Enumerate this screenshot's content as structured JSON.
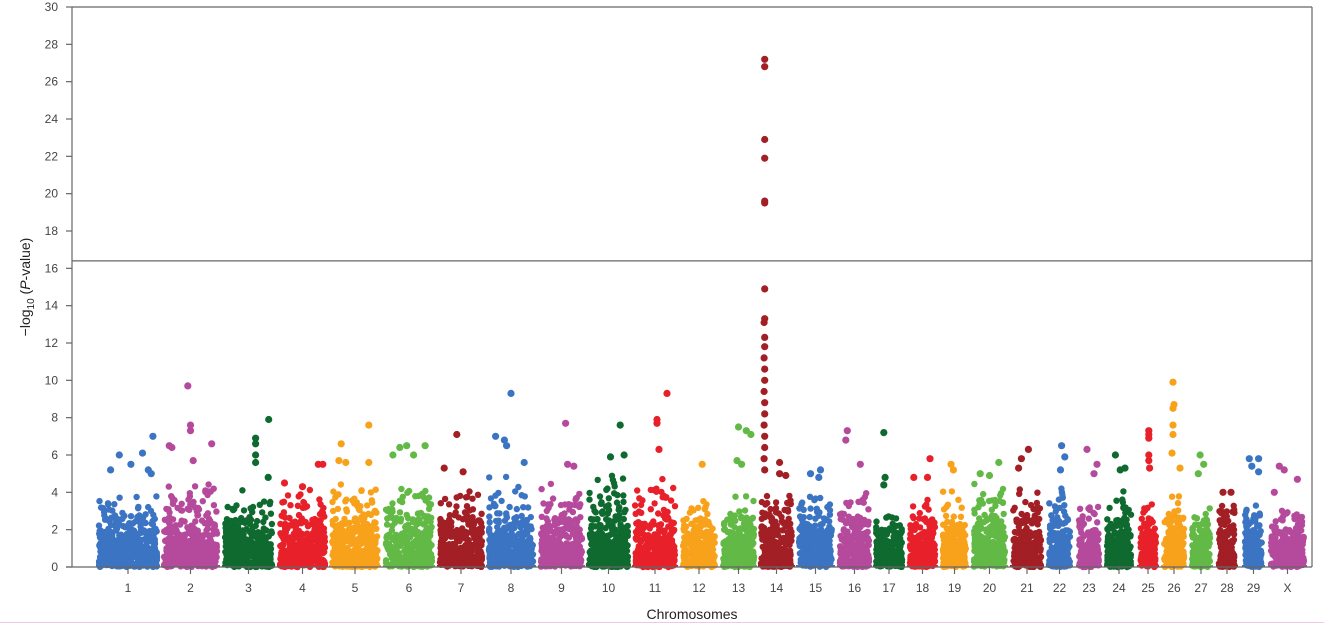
{
  "chart_data": {
    "type": "scatter",
    "subtype": "manhattan",
    "title": "",
    "xlabel": "Chromosomes",
    "ylabel": {
      "prefix": "−log",
      "sub": "10",
      "open": " (",
      "italic": "P",
      "suffix": "-value)"
    },
    "ylim": [
      0,
      30
    ],
    "yticks": [
      0,
      2,
      4,
      6,
      8,
      10,
      12,
      14,
      16,
      18,
      20,
      22,
      24,
      26,
      28,
      30
    ],
    "reference_line": 16.4,
    "grid": false,
    "legend": "none",
    "palette": [
      "#3b74c2",
      "#b54a9d",
      "#0f6a2f",
      "#e8202a",
      "#f8a21c",
      "#62b946",
      "#a21f25"
    ],
    "chromosomes": [
      {
        "label": "1",
        "bulk_max": 4.4,
        "top": [
          [
            0.2,
            5.2
          ],
          [
            0.35,
            6.0
          ],
          [
            0.55,
            5.5
          ],
          [
            0.75,
            6.1
          ],
          [
            0.85,
            5.2
          ],
          [
            0.93,
            7.0
          ],
          [
            0.9,
            5.0
          ]
        ]
      },
      {
        "label": "2",
        "bulk_max": 5.0,
        "top": [
          [
            0.45,
            9.7
          ],
          [
            0.5,
            7.6
          ],
          [
            0.5,
            7.3
          ],
          [
            0.9,
            6.6
          ],
          [
            0.1,
            6.5
          ],
          [
            0.15,
            6.4
          ],
          [
            0.55,
            5.7
          ]
        ]
      },
      {
        "label": "3",
        "bulk_max": 4.5,
        "top": [
          [
            0.93,
            7.9
          ],
          [
            0.65,
            6.9
          ],
          [
            0.65,
            6.6
          ],
          [
            0.65,
            6.0
          ],
          [
            0.65,
            5.6
          ],
          [
            0.92,
            4.8
          ]
        ]
      },
      {
        "label": "4",
        "bulk_max": 4.3,
        "top": [
          [
            0.85,
            5.5
          ],
          [
            0.95,
            5.5
          ],
          [
            0.1,
            4.5
          ],
          [
            0.5,
            4.3
          ]
        ]
      },
      {
        "label": "5",
        "bulk_max": 5.0,
        "top": [
          [
            0.8,
            7.6
          ],
          [
            0.2,
            6.6
          ],
          [
            0.15,
            5.7
          ],
          [
            0.3,
            5.6
          ],
          [
            0.8,
            5.6
          ]
        ]
      },
      {
        "label": "6",
        "bulk_max": 5.0,
        "top": [
          [
            0.45,
            6.5
          ],
          [
            0.85,
            6.5
          ],
          [
            0.3,
            6.4
          ],
          [
            0.15,
            6.0
          ],
          [
            0.6,
            6.0
          ]
        ]
      },
      {
        "label": "7",
        "bulk_max": 4.5,
        "top": [
          [
            0.4,
            7.1
          ],
          [
            0.1,
            5.3
          ],
          [
            0.55,
            5.1
          ]
        ]
      },
      {
        "label": "8",
        "bulk_max": 5.0,
        "top": [
          [
            0.5,
            9.3
          ],
          [
            0.15,
            7.0
          ],
          [
            0.35,
            6.8
          ],
          [
            0.4,
            6.5
          ],
          [
            0.8,
            5.6
          ]
        ]
      },
      {
        "label": "9",
        "bulk_max": 4.5,
        "top": [
          [
            0.6,
            7.7
          ],
          [
            0.65,
            5.5
          ],
          [
            0.8,
            5.4
          ]
        ]
      },
      {
        "label": "10",
        "bulk_max": 5.0,
        "top": [
          [
            0.8,
            7.6
          ],
          [
            0.9,
            6.0
          ],
          [
            0.55,
            5.9
          ]
        ]
      },
      {
        "label": "11",
        "bulk_max": 5.0,
        "top": [
          [
            0.8,
            9.3
          ],
          [
            0.55,
            7.9
          ],
          [
            0.55,
            7.7
          ],
          [
            0.6,
            6.3
          ]
        ]
      },
      {
        "label": "12",
        "bulk_max": 4.2,
        "top": [
          [
            0.6,
            5.5
          ]
        ]
      },
      {
        "label": "13",
        "bulk_max": 4.5,
        "top": [
          [
            0.5,
            7.5
          ],
          [
            0.75,
            7.3
          ],
          [
            0.9,
            7.1
          ],
          [
            0.45,
            5.7
          ],
          [
            0.6,
            5.5
          ]
        ]
      },
      {
        "label": "14",
        "bulk_max": 4.3,
        "top": [
          [
            0.12,
            27.2
          ],
          [
            0.12,
            26.8
          ],
          [
            0.12,
            22.9
          ],
          [
            0.12,
            21.9
          ],
          [
            0.12,
            19.6
          ],
          [
            0.12,
            19.5
          ],
          [
            0.12,
            14.9
          ],
          [
            0.12,
            13.3
          ],
          [
            0.1,
            13.1
          ],
          [
            0.12,
            12.3
          ],
          [
            0.12,
            11.8
          ],
          [
            0.1,
            11.2
          ],
          [
            0.12,
            10.6
          ],
          [
            0.12,
            10.0
          ],
          [
            0.1,
            9.4
          ],
          [
            0.12,
            8.8
          ],
          [
            0.12,
            8.2
          ],
          [
            0.1,
            7.6
          ],
          [
            0.12,
            7.0
          ],
          [
            0.12,
            6.4
          ],
          [
            0.1,
            5.8
          ],
          [
            0.12,
            5.2
          ],
          [
            0.6,
            5.6
          ],
          [
            0.6,
            5.0
          ],
          [
            0.8,
            4.9
          ]
        ]
      },
      {
        "label": "15",
        "bulk_max": 4.5,
        "top": [
          [
            0.65,
            5.2
          ],
          [
            0.35,
            5.0
          ],
          [
            0.6,
            4.8
          ]
        ]
      },
      {
        "label": "16",
        "bulk_max": 4.6,
        "top": [
          [
            0.25,
            7.3
          ],
          [
            0.2,
            6.8
          ],
          [
            0.7,
            5.5
          ]
        ]
      },
      {
        "label": "17",
        "bulk_max": 3.2,
        "top": [
          [
            0.3,
            7.2
          ],
          [
            0.35,
            4.8
          ],
          [
            0.3,
            4.4
          ]
        ]
      },
      {
        "label": "18",
        "bulk_max": 4.0,
        "top": [
          [
            0.8,
            5.8
          ],
          [
            0.15,
            4.8
          ],
          [
            0.7,
            4.8
          ]
        ]
      },
      {
        "label": "19",
        "bulk_max": 4.2,
        "top": [
          [
            0.35,
            5.5
          ],
          [
            0.45,
            5.2
          ]
        ]
      },
      {
        "label": "20",
        "bulk_max": 4.8,
        "top": [
          [
            0.8,
            5.6
          ],
          [
            0.2,
            5.0
          ],
          [
            0.5,
            4.9
          ]
        ]
      },
      {
        "label": "21",
        "bulk_max": 4.2,
        "top": [
          [
            0.55,
            6.3
          ],
          [
            0.3,
            5.8
          ],
          [
            0.2,
            5.3
          ]
        ]
      },
      {
        "label": "22",
        "bulk_max": 4.3,
        "top": [
          [
            0.6,
            6.5
          ],
          [
            0.75,
            5.9
          ],
          [
            0.55,
            5.2
          ]
        ]
      },
      {
        "label": "23",
        "bulk_max": 3.8,
        "top": [
          [
            0.4,
            6.3
          ],
          [
            0.9,
            5.5
          ],
          [
            0.75,
            5.0
          ]
        ]
      },
      {
        "label": "24",
        "bulk_max": 4.3,
        "top": [
          [
            0.35,
            6.0
          ],
          [
            0.75,
            5.3
          ],
          [
            0.55,
            5.2
          ]
        ]
      },
      {
        "label": "25",
        "bulk_max": 4.2,
        "top": [
          [
            0.55,
            7.3
          ],
          [
            0.55,
            7.1
          ],
          [
            0.55,
            6.9
          ],
          [
            0.55,
            6.0
          ],
          [
            0.55,
            5.7
          ],
          [
            0.6,
            5.3
          ]
        ]
      },
      {
        "label": "26",
        "bulk_max": 4.5,
        "top": [
          [
            0.45,
            9.9
          ],
          [
            0.5,
            8.7
          ],
          [
            0.45,
            8.5
          ],
          [
            0.45,
            7.6
          ],
          [
            0.45,
            7.1
          ],
          [
            0.4,
            6.1
          ],
          [
            0.8,
            5.3
          ]
        ]
      },
      {
        "label": "27",
        "bulk_max": 4.0,
        "top": [
          [
            0.45,
            6.0
          ],
          [
            0.65,
            5.5
          ],
          [
            0.35,
            5.0
          ]
        ]
      },
      {
        "label": "28",
        "bulk_max": 3.7,
        "top": [
          [
            0.25,
            4.0
          ],
          [
            0.75,
            4.0
          ]
        ]
      },
      {
        "label": "29",
        "bulk_max": 4.0,
        "top": [
          [
            0.25,
            5.8
          ],
          [
            0.8,
            5.8
          ],
          [
            0.4,
            5.4
          ],
          [
            0.8,
            5.1
          ]
        ]
      },
      {
        "label": "X",
        "bulk_max": 3.6,
        "top": [
          [
            0.25,
            5.4
          ],
          [
            0.4,
            5.2
          ],
          [
            0.8,
            4.7
          ],
          [
            0.1,
            4.0
          ]
        ]
      }
    ]
  }
}
